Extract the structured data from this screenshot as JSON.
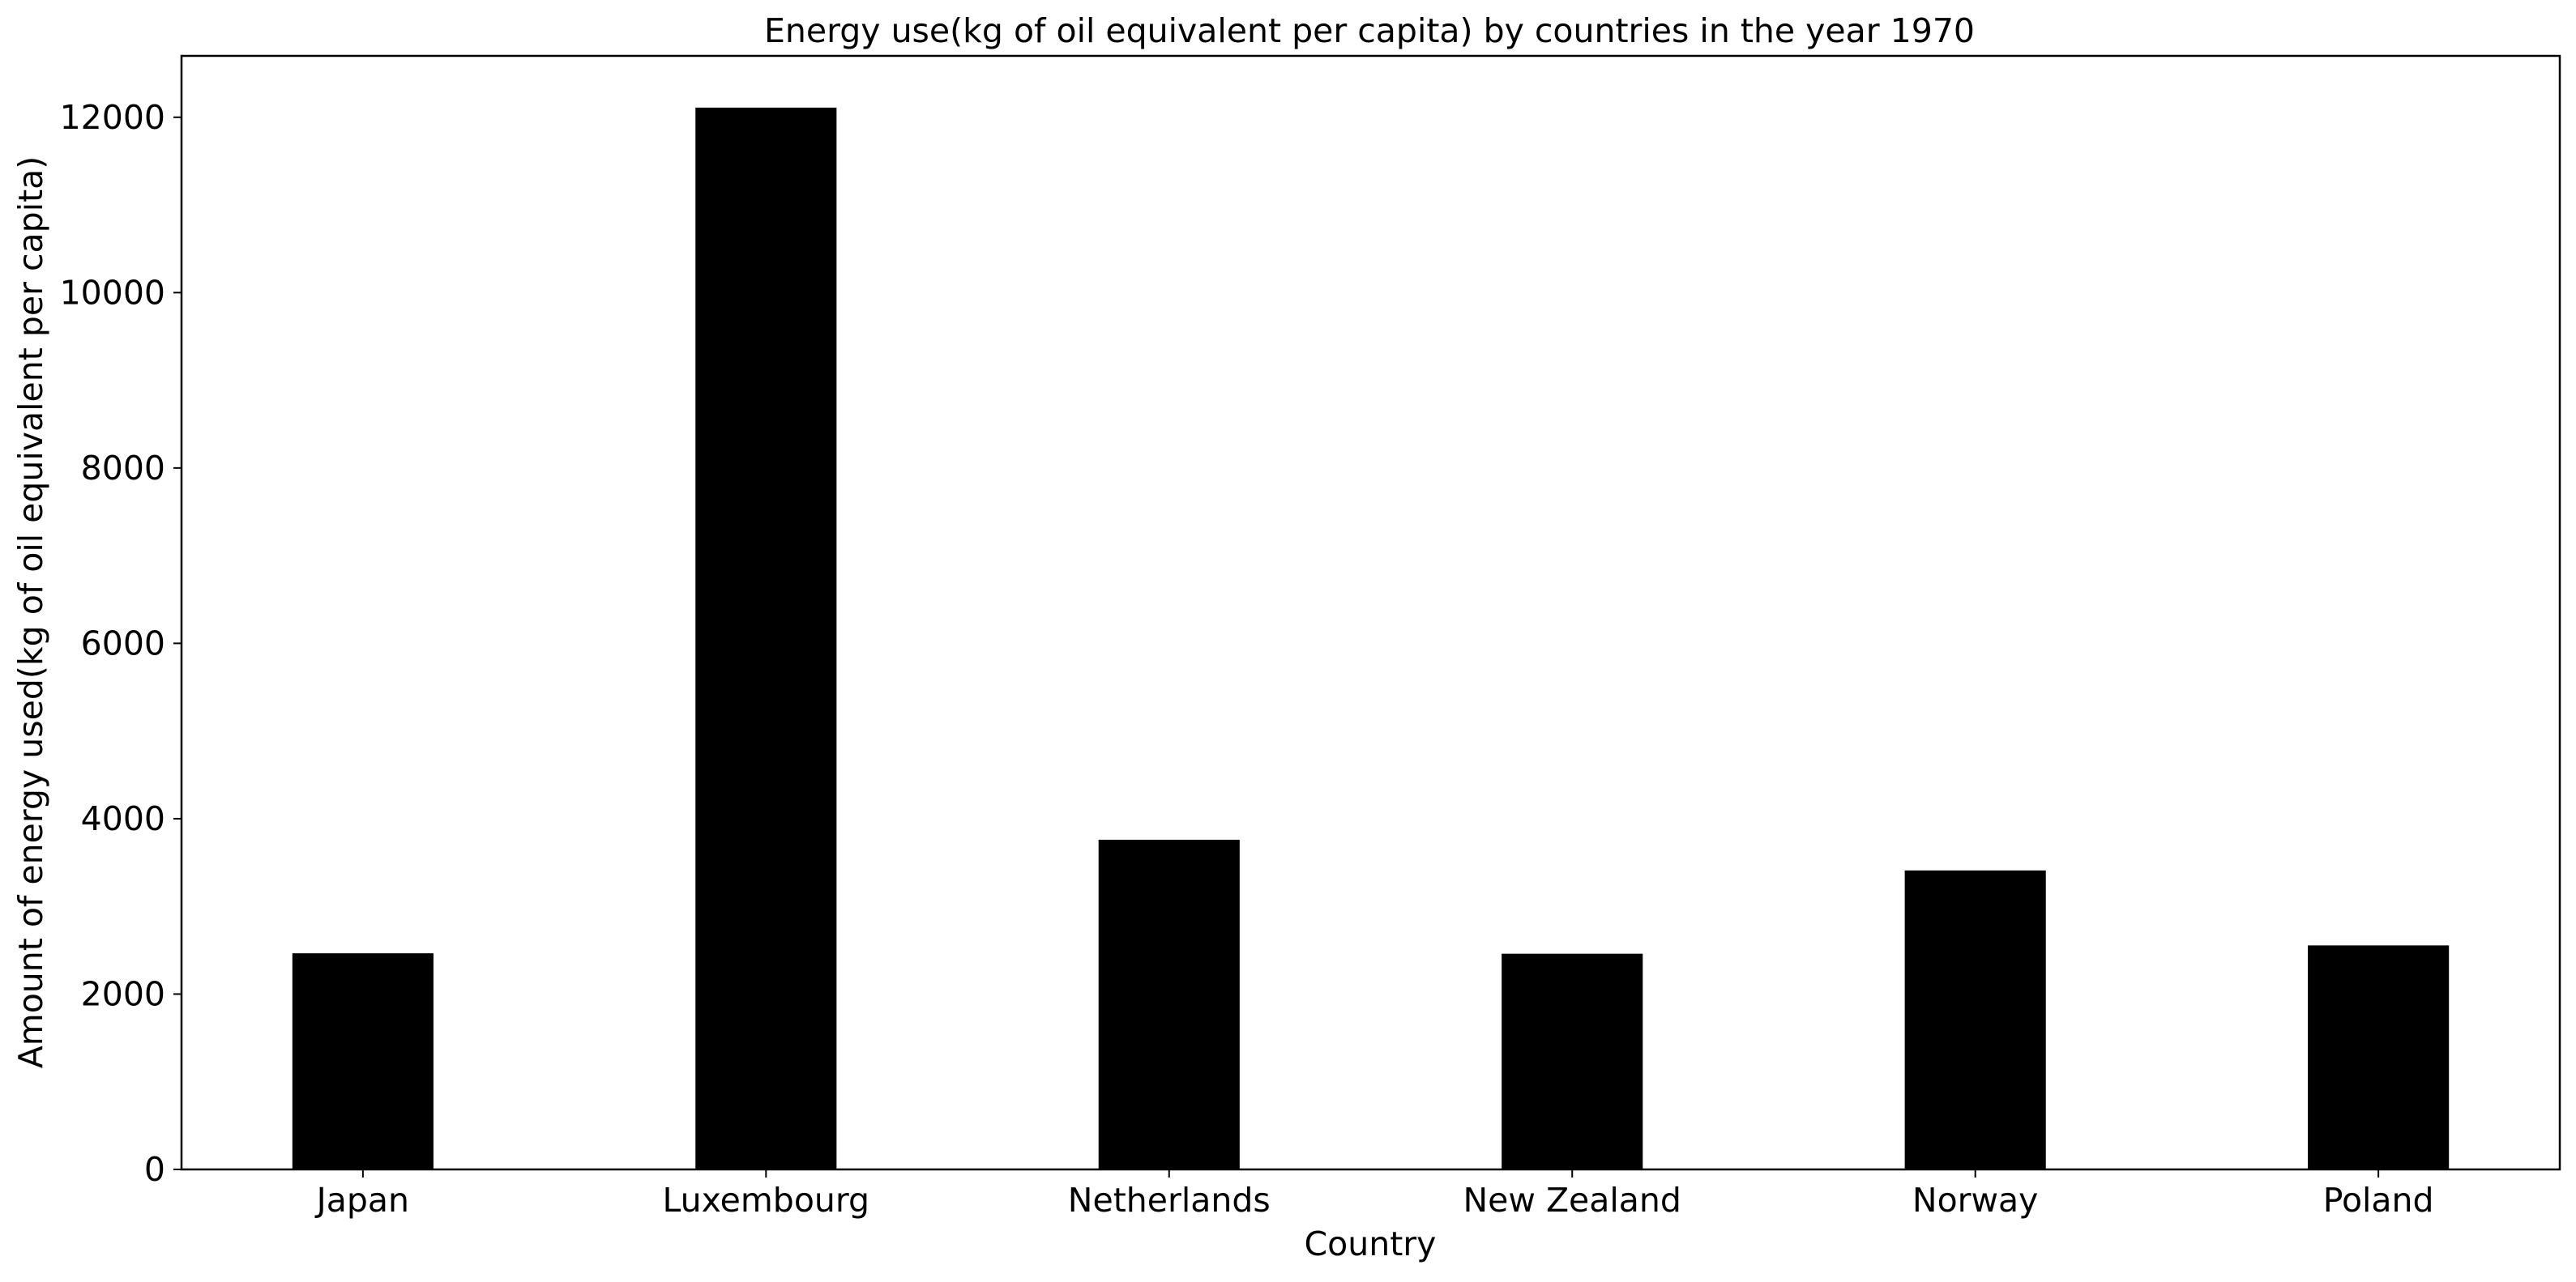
{
  "chart_data": {
    "type": "bar",
    "title": "Energy use(kg of oil equivalent per capita) by countries in the year 1970",
    "xlabel": "Country",
    "ylabel": "Amount of energy used(kg of oil equivalent per capita)",
    "categories": [
      "Japan",
      "Luxembourg",
      "Netherlands",
      "New Zealand",
      "Norway",
      "Poland"
    ],
    "values": [
      2465,
      12110,
      3760,
      2460,
      3410,
      2555
    ],
    "ylim": [
      0,
      12700
    ],
    "yticks": [
      0,
      2000,
      4000,
      6000,
      8000,
      10000,
      12000
    ],
    "grid": false,
    "legend": "none",
    "colors": {
      "bar": "#000000",
      "axis": "#000000",
      "background": "#ffffff"
    }
  }
}
